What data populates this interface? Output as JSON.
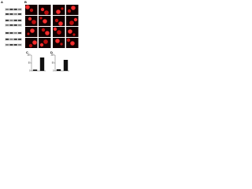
{
  "panels": {
    "a": "A",
    "b": "B",
    "c": "C",
    "d": "D"
  },
  "chart_data": [
    {
      "type": "bar",
      "values": [
        8,
        85
      ],
      "color": "#111111",
      "ylim": [
        0,
        100
      ],
      "yticks": [
        0,
        50,
        100
      ]
    },
    {
      "type": "bar",
      "values": [
        10,
        70
      ],
      "color": "#111111",
      "ylim": [
        0,
        100
      ],
      "yticks": [
        0,
        50,
        100
      ]
    }
  ]
}
